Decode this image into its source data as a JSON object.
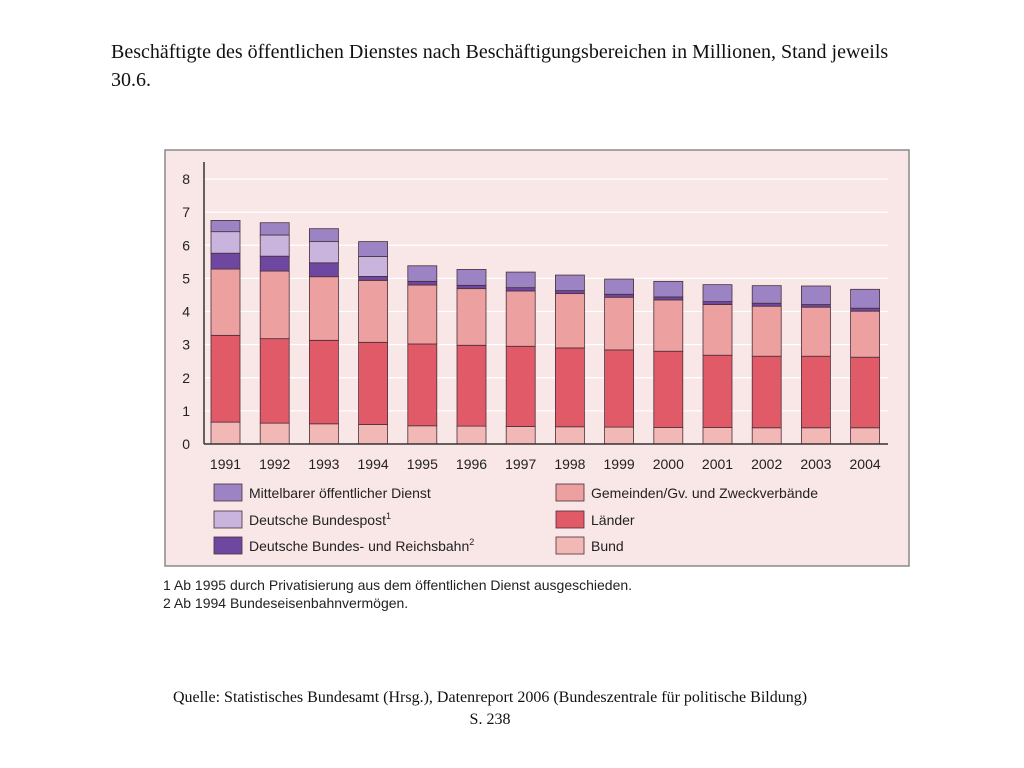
{
  "title": "Beschäftigte des öffentlichen Dienstes nach Beschäftigungsbereichen in Millionen, Stand jeweils 30.6.",
  "footnotes": [
    "1  Ab 1995 durch Privatisierung aus dem öffentlichen Dienst ausgeschieden.",
    "2  Ab 1994 Bundeseisenbahnvermögen."
  ],
  "source": {
    "line1": "Quelle: Statistisches Bundesamt (Hrsg.), Datenreport 2006 (Bundeszentrale für politische Bildung)",
    "line2": "S. 238"
  },
  "chart_data": {
    "type": "bar",
    "stacked": true,
    "categories": [
      "1991",
      "1992",
      "1993",
      "1994",
      "1995",
      "1996",
      "1997",
      "1998",
      "1999",
      "2000",
      "2001",
      "2002",
      "2003",
      "2004"
    ],
    "ylim": [
      0,
      8
    ],
    "yticks": [
      0,
      1,
      2,
      3,
      4,
      5,
      6,
      7,
      8
    ],
    "grid": true,
    "series": [
      {
        "name": "Bund",
        "color": "#f2b8b5",
        "values": [
          0.66,
          0.63,
          0.61,
          0.59,
          0.55,
          0.54,
          0.53,
          0.52,
          0.51,
          0.5,
          0.5,
          0.49,
          0.49,
          0.49
        ]
      },
      {
        "name": "Länder",
        "color": "#e05a68",
        "values": [
          2.62,
          2.55,
          2.52,
          2.48,
          2.47,
          2.44,
          2.42,
          2.38,
          2.33,
          2.3,
          2.18,
          2.16,
          2.16,
          2.13
        ]
      },
      {
        "name": "Gemeinden/Gv. und Zweckverbände",
        "color": "#eca09f",
        "values": [
          2.0,
          2.04,
          1.92,
          1.87,
          1.78,
          1.71,
          1.67,
          1.64,
          1.59,
          1.55,
          1.53,
          1.51,
          1.48,
          1.39
        ]
      },
      {
        "name": "Deutsche Bundes- und Reichsbahn",
        "note": "2",
        "color": "#6e48a0",
        "values": [
          0.48,
          0.45,
          0.42,
          0.12,
          0.11,
          0.1,
          0.1,
          0.09,
          0.09,
          0.09,
          0.09,
          0.09,
          0.08,
          0.09
        ]
      },
      {
        "name": "Deutsche Bundespost",
        "note": "1",
        "color": "#c8b4dc",
        "values": [
          0.65,
          0.64,
          0.64,
          0.6,
          0.0,
          0.0,
          0.0,
          0.0,
          0.0,
          0.0,
          0.0,
          0.0,
          0.0,
          0.0
        ]
      },
      {
        "name": "Mittelbarer öffentlicher Dienst",
        "color": "#9c84c4",
        "values": [
          0.34,
          0.37,
          0.39,
          0.45,
          0.47,
          0.48,
          0.47,
          0.47,
          0.46,
          0.47,
          0.51,
          0.53,
          0.56,
          0.57
        ]
      }
    ],
    "legend_order": [
      "Mittelbarer öffentlicher Dienst",
      "Deutsche Bundespost",
      "Deutsche Bundes- und Reichsbahn",
      "Gemeinden/Gv. und Zweckverbände",
      "Länder",
      "Bund"
    ],
    "legend_placement": "bottom",
    "background": "#f9e6e6"
  }
}
